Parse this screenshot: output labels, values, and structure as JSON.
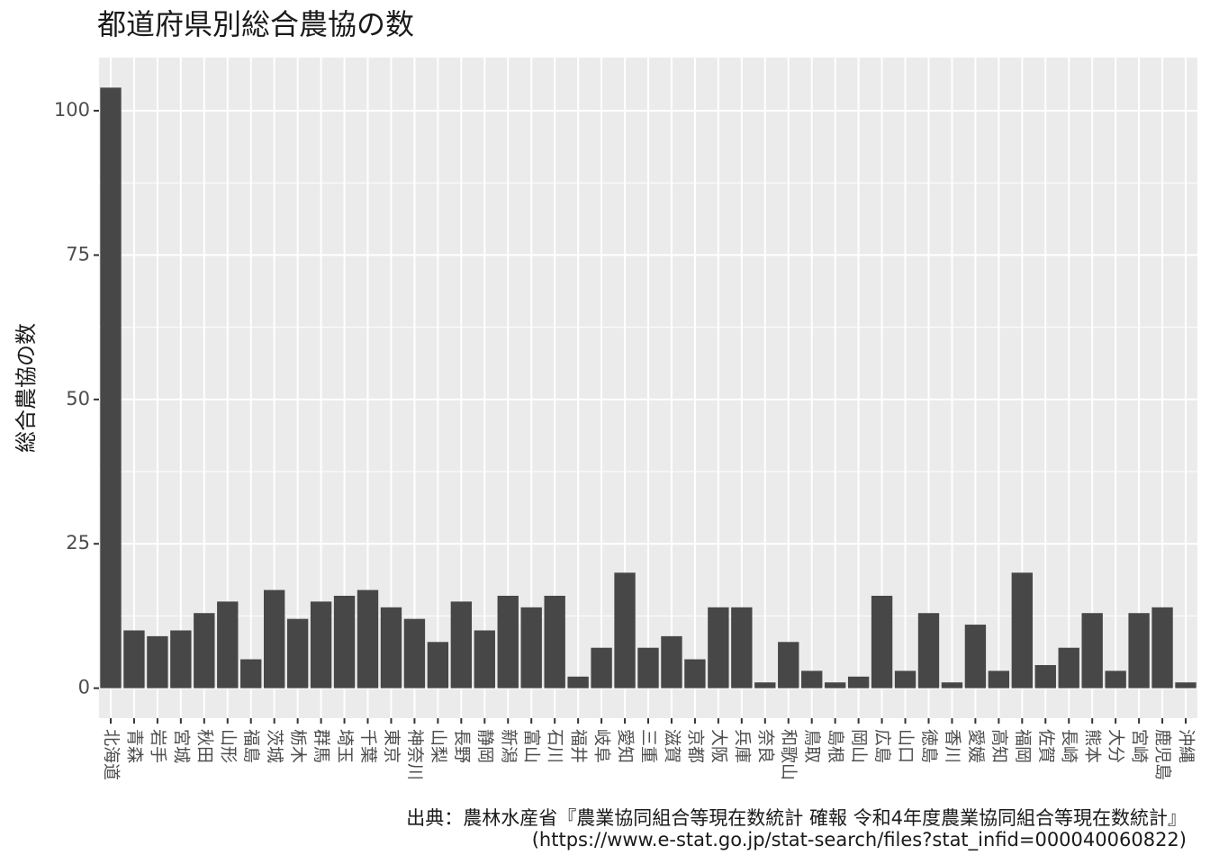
{
  "chart_data": {
    "type": "bar",
    "title": "都道府県別総合農協の数",
    "y_label": "総合農協の数",
    "caption": [
      "出典：農林水産省『農業協同組合等現在数統計 確報 令和4年度農業協同組合等現在数統計』",
      "(https://www.e-stat.go.jp/stat-search/files?stat_infid=000040060822)"
    ],
    "categories": [
      "北海道",
      "青森",
      "岩手",
      "宮城",
      "秋田",
      "山形",
      "福島",
      "茨城",
      "栃木",
      "群馬",
      "埼玉",
      "千葉",
      "東京",
      "神奈川",
      "山梨",
      "長野",
      "静岡",
      "新潟",
      "富山",
      "石川",
      "福井",
      "岐阜",
      "愛知",
      "三重",
      "滋賀",
      "京都",
      "大阪",
      "兵庫",
      "奈良",
      "和歌山",
      "鳥取",
      "島根",
      "岡山",
      "広島",
      "山口",
      "徳島",
      "香川",
      "愛媛",
      "高知",
      "福岡",
      "佐賀",
      "長崎",
      "熊本",
      "大分",
      "宮崎",
      "鹿児島",
      "沖縄"
    ],
    "values": [
      104,
      10,
      9,
      10,
      13,
      15,
      5,
      17,
      12,
      15,
      16,
      17,
      14,
      12,
      8,
      15,
      10,
      16,
      14,
      16,
      2,
      7,
      20,
      7,
      9,
      5,
      14,
      14,
      1,
      8,
      3,
      1,
      2,
      16,
      3,
      13,
      1,
      11,
      3,
      20,
      4,
      7,
      13,
      3,
      13,
      14,
      1
    ],
    "color": "#474747",
    "ylim": [
      -5.2,
      109.2
    ],
    "yticks": [
      0,
      25,
      50,
      75,
      100
    ],
    "grid": true
  }
}
